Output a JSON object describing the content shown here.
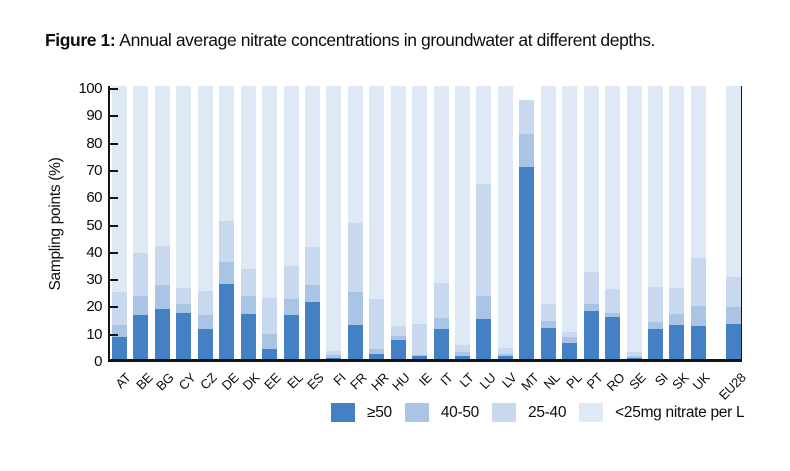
{
  "figure": {
    "label": "Figure 1:",
    "caption": "Annual average nitrate concentrations in groundwater at different depths."
  },
  "axis_color": "#141414",
  "chart_data": {
    "type": "bar",
    "subtype": "stacked-percentage",
    "title": "Figure 1: Annual average nitrate concentrations in groundwater at different depths.",
    "xlabel": "",
    "ylabel": "Sampling points (%)",
    "ylim": [
      0,
      100
    ],
    "yticks": [
      0,
      10,
      20,
      30,
      40,
      50,
      60,
      70,
      80,
      90,
      100
    ],
    "grid": false,
    "legend_position": "bottom-right",
    "categories": [
      "AT",
      "BE",
      "BG",
      "CY",
      "CZ",
      "DE",
      "DK",
      "EE",
      "EL",
      "ES",
      "FI",
      "FR",
      "HR",
      "HU",
      "IE",
      "IT",
      "LT",
      "LU",
      "LV",
      "MT",
      "NL",
      "PL",
      "PT",
      "RO",
      "SE",
      "SI",
      "SK",
      "UK",
      "EU28"
    ],
    "series": [
      {
        "name": "≥50",
        "color": "#4480c4",
        "values": [
          8,
          16,
          18.5,
          17,
          11,
          27.5,
          16.5,
          3.5,
          16,
          21,
          0.5,
          12.5,
          2,
          7,
          1,
          11,
          1,
          14.5,
          1,
          70.5,
          11.5,
          6,
          17.5,
          15.5,
          0.5,
          11,
          12.5,
          12,
          13
        ]
      },
      {
        "name": "40-50",
        "color": "#a9c4e5",
        "values": [
          4.5,
          7,
          8.5,
          3,
          5,
          8,
          6.5,
          5.5,
          6,
          6,
          1,
          12,
          1.5,
          1.5,
          0.5,
          4,
          1.5,
          8.5,
          1,
          12,
          2.5,
          2,
          2.5,
          1.5,
          0.5,
          2.5,
          4,
          7.5,
          6
        ]
      },
      {
        "name": "25-40",
        "color": "#c8d8ee",
        "values": [
          12,
          16,
          14.5,
          6,
          9,
          15,
          10,
          13.5,
          12,
          14,
          1.5,
          25.5,
          18.5,
          3.5,
          11.5,
          13,
          2.5,
          41,
          2,
          12.5,
          6,
          2,
          12,
          8.5,
          1.5,
          13,
          9.5,
          17.5,
          11
        ]
      },
      {
        "name": "<25mg nitrate per L",
        "color": "#dfe9f5",
        "values": [
          75.5,
          61,
          58.5,
          74,
          75,
          49.5,
          67,
          77.5,
          66,
          59,
          97,
          50,
          78,
          88,
          87,
          72,
          95,
          36,
          96,
          0,
          80,
          90,
          68,
          74.5,
          97.5,
          73.5,
          74,
          63,
          70
        ]
      }
    ]
  }
}
